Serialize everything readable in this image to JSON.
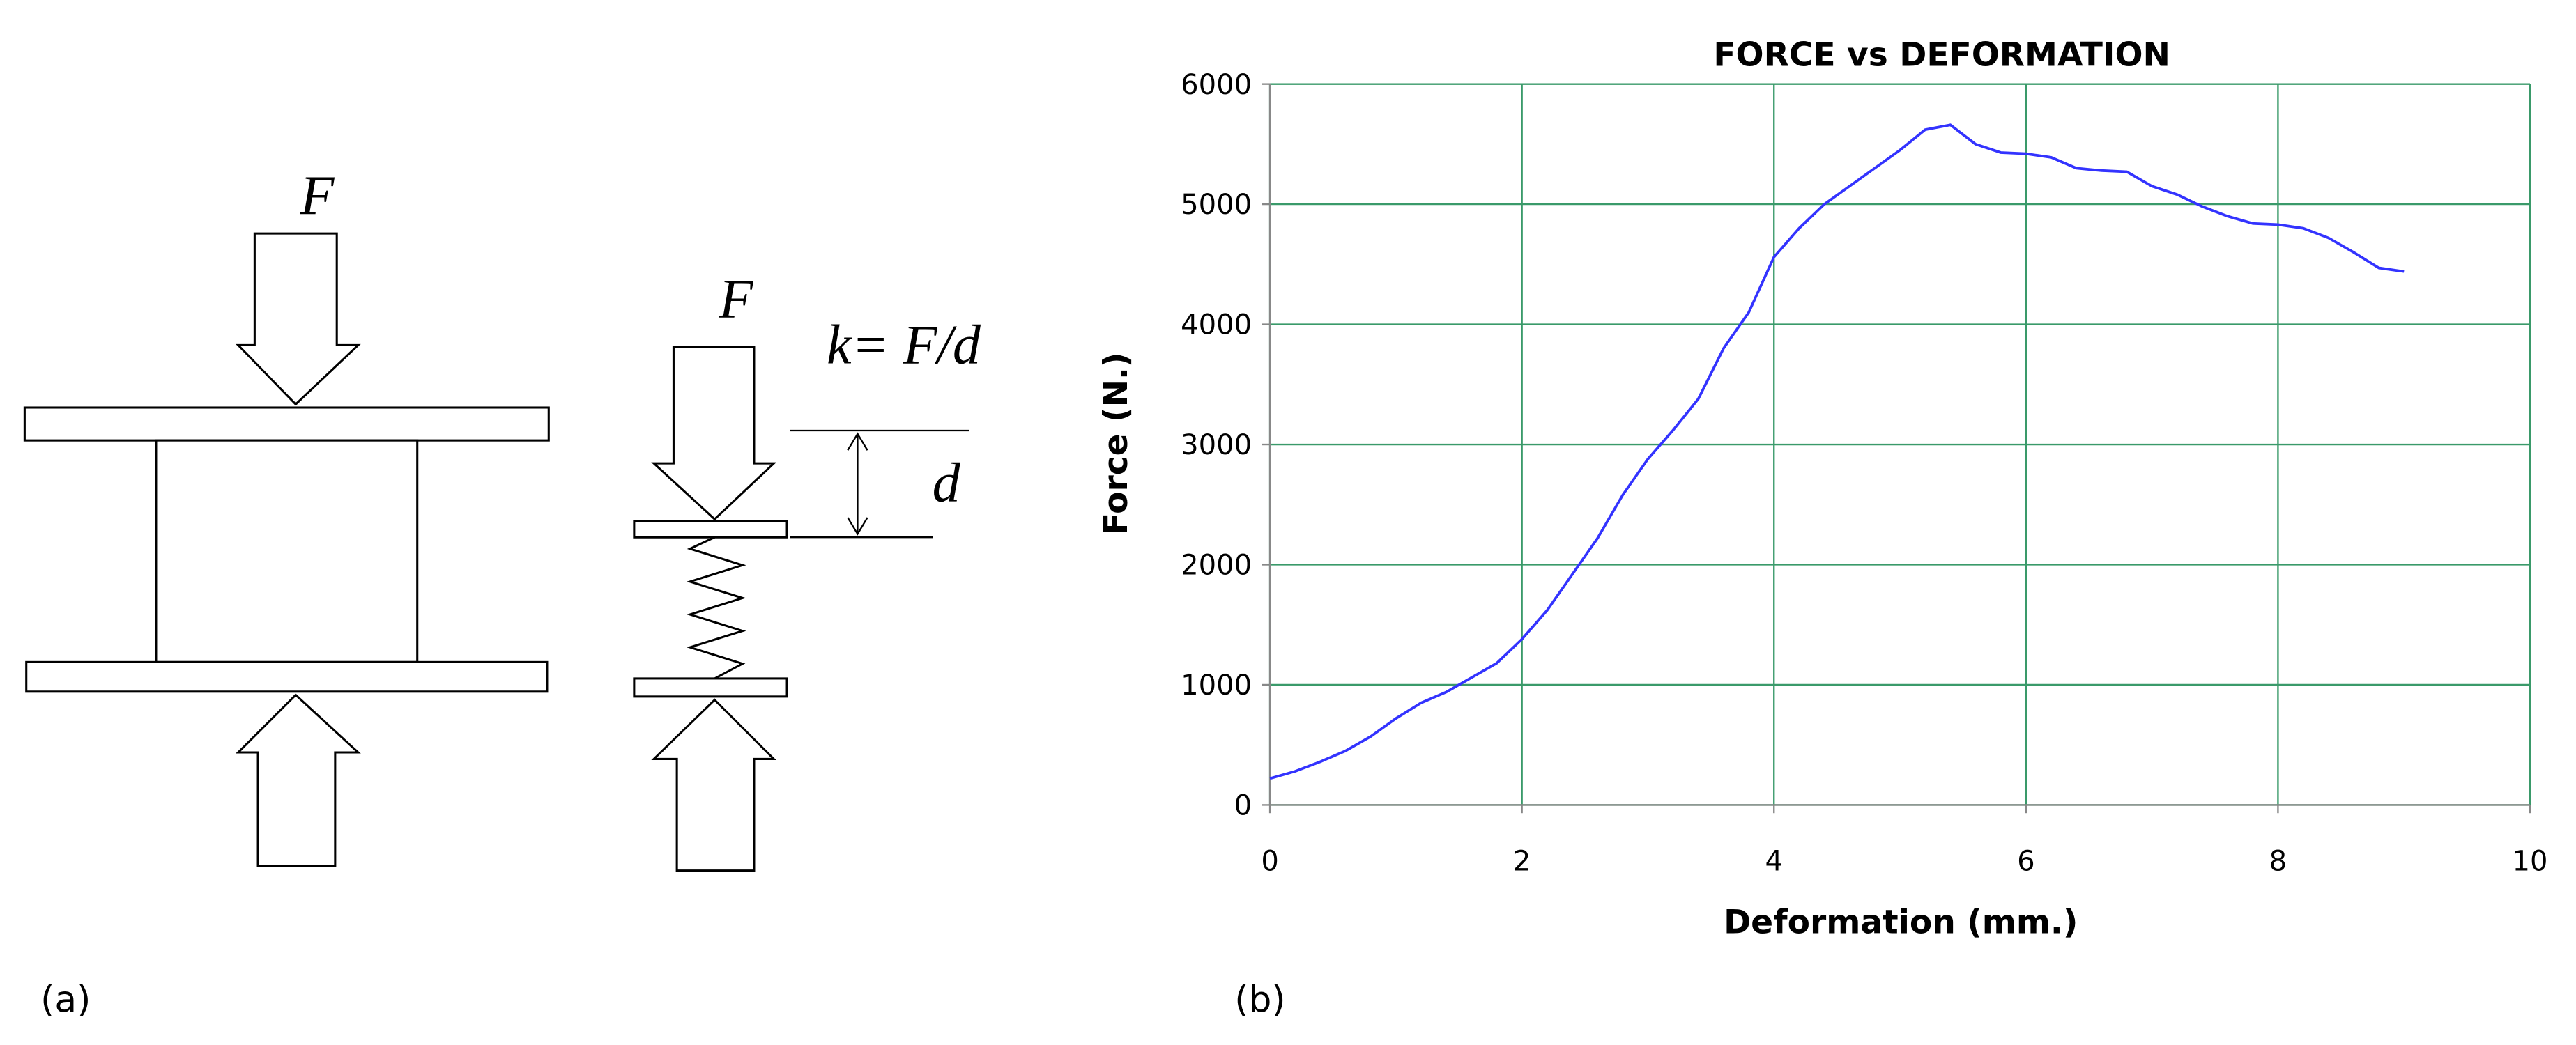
{
  "panel_labels": [
    "(a)",
    "(b)"
  ],
  "diagram": {
    "labels": [
      "F",
      "F",
      "k= F/d",
      "d"
    ]
  },
  "chart_data": {
    "type": "line",
    "title": "FORCE vs DEFORMATION",
    "x_label": "Deformation (mm.)",
    "y_label": "Force (N.)",
    "x": [
      0,
      0.2,
      0.4,
      0.6,
      0.8,
      1.0,
      1.2,
      1.4,
      1.6,
      1.8,
      2.0,
      2.2,
      2.4,
      2.6,
      2.8,
      3.0,
      3.2,
      3.4,
      3.6,
      3.8,
      4.0,
      4.2,
      4.4,
      4.6,
      4.8,
      5.0,
      5.2,
      5.4,
      5.6,
      5.8,
      6.0,
      6.2,
      6.4,
      6.6,
      6.8,
      7.0,
      7.2,
      7.4,
      7.6,
      7.8,
      8.0,
      8.2,
      8.4,
      8.6,
      8.8,
      9.0
    ],
    "series": [
      {
        "name": "Force",
        "color": "#3333ff",
        "values": [
          220,
          280,
          360,
          450,
          570,
          720,
          850,
          940,
          1060,
          1180,
          1380,
          1620,
          1920,
          2220,
          2580,
          2880,
          3120,
          3380,
          3800,
          4100,
          4560,
          4800,
          5000,
          5150,
          5300,
          5450,
          5620,
          5660,
          5500,
          5430,
          5420,
          5390,
          5300,
          5280,
          5270,
          5150,
          5080,
          4980,
          4900,
          4840,
          4830,
          4800,
          4720,
          4600,
          4470,
          4440
        ]
      }
    ],
    "xlim": [
      0,
      10
    ],
    "xticks": [
      0,
      2,
      4,
      6,
      8,
      10
    ],
    "ylim": [
      0,
      6000
    ],
    "yticks": [
      0,
      1000,
      2000,
      3000,
      4000,
      5000,
      6000
    ],
    "grid": true,
    "grid_color": "#3a9a6a"
  }
}
